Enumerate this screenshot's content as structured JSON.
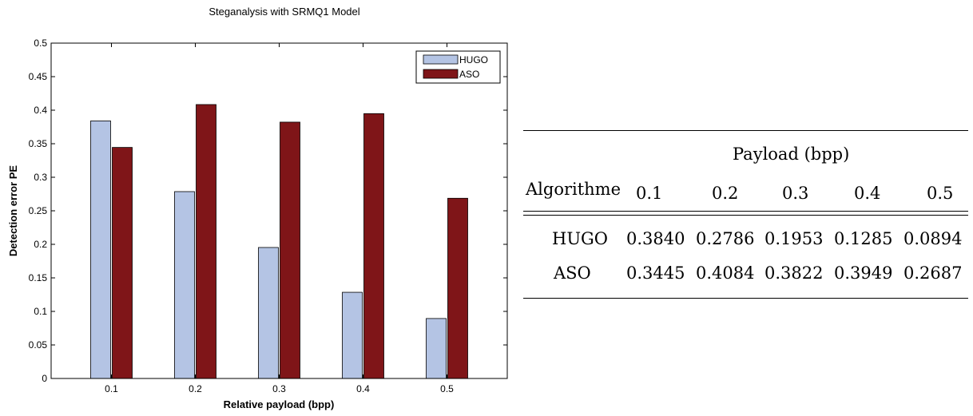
{
  "chart_data": {
    "type": "bar",
    "title": "Steganalysis with SRMQ1 Model",
    "xlabel": "Relative payload (bpp)",
    "ylabel": "Detection error PE",
    "categories": [
      "0.1",
      "0.2",
      "0.3",
      "0.4",
      "0.5"
    ],
    "ylim": [
      0,
      0.5
    ],
    "yticks": [
      "0",
      "0.05",
      "0.1",
      "0.15",
      "0.2",
      "0.25",
      "0.3",
      "0.35",
      "0.4",
      "0.45",
      "0.5"
    ],
    "legend_position": "top-right",
    "series": [
      {
        "name": "HUGO",
        "color": "#b4c4e4",
        "values": [
          0.384,
          0.2786,
          0.1953,
          0.1285,
          0.0894
        ]
      },
      {
        "name": "ASO",
        "color": "#7f1518",
        "values": [
          0.3445,
          0.4084,
          0.3822,
          0.3949,
          0.2687
        ]
      }
    ]
  },
  "table": {
    "group_header": "Payload (bpp)",
    "row_header": "Algorithme",
    "columns": [
      "0.1",
      "0.2",
      "0.3",
      "0.4",
      "0.5"
    ],
    "rows": [
      {
        "label": "HUGO",
        "values": [
          "0.3840",
          "0.2786",
          "0.1953",
          "0.1285",
          "0.0894"
        ]
      },
      {
        "label": "ASO",
        "values": [
          "0.3445",
          "0.4084",
          "0.3822",
          "0.3949",
          "0.2687"
        ]
      }
    ]
  }
}
